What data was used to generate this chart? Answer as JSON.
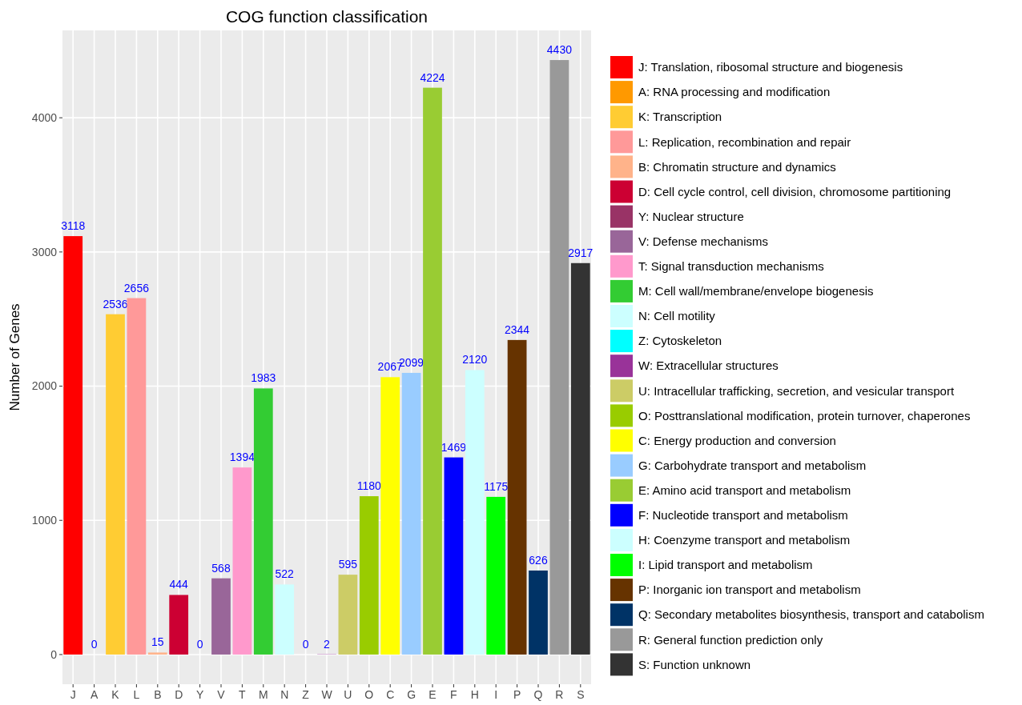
{
  "chart_data": {
    "type": "bar",
    "title": "COG function classification",
    "ylabel": "Number of Genes",
    "categories": [
      "J",
      "A",
      "K",
      "L",
      "B",
      "D",
      "Y",
      "V",
      "T",
      "M",
      "N",
      "Z",
      "W",
      "U",
      "O",
      "C",
      "G",
      "E",
      "F",
      "H",
      "I",
      "P",
      "Q",
      "R",
      "S"
    ],
    "stacked": true,
    "data_labels": true,
    "grid": true,
    "legend": "right",
    "ylim": [
      -221,
      4651
    ],
    "yticks": [
      0,
      1000,
      2000,
      3000,
      4000
    ],
    "series": [
      {
        "name": "J: Translation, ribosomal structure and biogenesis",
        "color": "#ff0000",
        "values": [
          3118,
          null,
          null,
          null,
          null,
          null,
          null,
          null,
          null,
          null,
          null,
          null,
          null,
          null,
          null,
          null,
          null,
          null,
          null,
          null,
          null,
          null,
          null,
          null,
          null
        ]
      },
      {
        "name": "A: RNA processing and modification",
        "color": "#ff9900",
        "values": [
          null,
          0,
          null,
          null,
          null,
          null,
          null,
          null,
          null,
          null,
          null,
          null,
          null,
          null,
          null,
          null,
          null,
          null,
          null,
          null,
          null,
          null,
          null,
          null,
          null
        ]
      },
      {
        "name": "K: Transcription",
        "color": "#ffcc33",
        "values": [
          null,
          null,
          2536,
          null,
          null,
          null,
          null,
          null,
          null,
          null,
          null,
          null,
          null,
          null,
          null,
          null,
          null,
          null,
          null,
          null,
          null,
          null,
          null,
          null,
          null
        ]
      },
      {
        "name": "L: Replication, recombination and repair",
        "color": "#ff9999",
        "values": [
          null,
          null,
          null,
          2656,
          null,
          null,
          null,
          null,
          null,
          null,
          null,
          null,
          null,
          null,
          null,
          null,
          null,
          null,
          null,
          null,
          null,
          null,
          null,
          null,
          null
        ]
      },
      {
        "name": "B: Chromatin structure and dynamics",
        "color": "#ffb38a",
        "values": [
          null,
          null,
          null,
          null,
          15,
          null,
          null,
          null,
          null,
          null,
          null,
          null,
          null,
          null,
          null,
          null,
          null,
          null,
          null,
          null,
          null,
          null,
          null,
          null,
          null
        ]
      },
      {
        "name": "D: Cell cycle control, cell division, chromosome partitioning",
        "color": "#cc0033",
        "values": [
          null,
          null,
          null,
          null,
          null,
          444,
          null,
          null,
          null,
          null,
          null,
          null,
          null,
          null,
          null,
          null,
          null,
          null,
          null,
          null,
          null,
          null,
          null,
          null,
          null
        ]
      },
      {
        "name": "Y: Nuclear structure",
        "color": "#993366",
        "values": [
          null,
          null,
          null,
          null,
          null,
          null,
          0,
          null,
          null,
          null,
          null,
          null,
          null,
          null,
          null,
          null,
          null,
          null,
          null,
          null,
          null,
          null,
          null,
          null,
          null
        ]
      },
      {
        "name": "V: Defense mechanisms",
        "color": "#996699",
        "values": [
          null,
          null,
          null,
          null,
          null,
          null,
          null,
          568,
          null,
          null,
          null,
          null,
          null,
          null,
          null,
          null,
          null,
          null,
          null,
          null,
          null,
          null,
          null,
          null,
          null
        ]
      },
      {
        "name": "T: Signal transduction mechanisms",
        "color": "#ff99cc",
        "values": [
          null,
          null,
          null,
          null,
          null,
          null,
          null,
          null,
          1394,
          null,
          null,
          null,
          null,
          null,
          null,
          null,
          null,
          null,
          null,
          null,
          null,
          null,
          null,
          null,
          null
        ]
      },
      {
        "name": "M: Cell wall/membrane/envelope biogenesis",
        "color": "#33cc33",
        "values": [
          null,
          null,
          null,
          null,
          null,
          null,
          null,
          null,
          null,
          1983,
          null,
          null,
          null,
          null,
          null,
          null,
          null,
          null,
          null,
          null,
          null,
          null,
          null,
          null,
          null
        ]
      },
      {
        "name": "N: Cell motility",
        "color": "#ccffff",
        "values": [
          null,
          null,
          null,
          null,
          null,
          null,
          null,
          null,
          null,
          null,
          522,
          null,
          null,
          null,
          null,
          null,
          null,
          null,
          null,
          null,
          null,
          null,
          null,
          null,
          null
        ]
      },
      {
        "name": "Z: Cytoskeleton",
        "color": "#00ffff",
        "values": [
          null,
          null,
          null,
          null,
          null,
          null,
          null,
          null,
          null,
          null,
          null,
          0,
          null,
          null,
          null,
          null,
          null,
          null,
          null,
          null,
          null,
          null,
          null,
          null,
          null
        ]
      },
      {
        "name": "W: Extracellular structures",
        "color": "#993399",
        "values": [
          null,
          null,
          null,
          null,
          null,
          null,
          null,
          null,
          null,
          null,
          null,
          null,
          2,
          null,
          null,
          null,
          null,
          null,
          null,
          null,
          null,
          null,
          null,
          null,
          null
        ]
      },
      {
        "name": "U: Intracellular trafficking, secretion, and vesicular transport",
        "color": "#cccc66",
        "values": [
          null,
          null,
          null,
          null,
          null,
          null,
          null,
          null,
          null,
          null,
          null,
          null,
          null,
          595,
          null,
          null,
          null,
          null,
          null,
          null,
          null,
          null,
          null,
          null,
          null
        ]
      },
      {
        "name": "O: Posttranslational modification, protein turnover, chaperones",
        "color": "#99cc00",
        "values": [
          null,
          null,
          null,
          null,
          null,
          null,
          null,
          null,
          null,
          null,
          null,
          null,
          null,
          null,
          1180,
          null,
          null,
          null,
          null,
          null,
          null,
          null,
          null,
          null,
          null
        ]
      },
      {
        "name": "C: Energy production and conversion",
        "color": "#ffff00",
        "values": [
          null,
          null,
          null,
          null,
          null,
          null,
          null,
          null,
          null,
          null,
          null,
          null,
          null,
          null,
          null,
          2067,
          null,
          null,
          null,
          null,
          null,
          null,
          null,
          null,
          null
        ]
      },
      {
        "name": "G: Carbohydrate transport and metabolism",
        "color": "#99ccff",
        "values": [
          null,
          null,
          null,
          null,
          null,
          null,
          null,
          null,
          null,
          null,
          null,
          null,
          null,
          null,
          null,
          null,
          2099,
          null,
          null,
          null,
          null,
          null,
          null,
          null,
          null
        ]
      },
      {
        "name": "E: Amino acid transport and metabolism",
        "color": "#99cc33",
        "values": [
          null,
          null,
          null,
          null,
          null,
          null,
          null,
          null,
          null,
          null,
          null,
          null,
          null,
          null,
          null,
          null,
          null,
          4224,
          null,
          null,
          null,
          null,
          null,
          null,
          null
        ]
      },
      {
        "name": "F: Nucleotide transport and metabolism",
        "color": "#0000ff",
        "values": [
          null,
          null,
          null,
          null,
          null,
          null,
          null,
          null,
          null,
          null,
          null,
          null,
          null,
          null,
          null,
          null,
          null,
          null,
          1469,
          null,
          null,
          null,
          null,
          null,
          null
        ]
      },
      {
        "name": "H: Coenzyme transport and metabolism",
        "color": "#ccffff",
        "values": [
          null,
          null,
          null,
          null,
          null,
          null,
          null,
          null,
          null,
          null,
          null,
          null,
          null,
          null,
          null,
          null,
          null,
          null,
          null,
          2120,
          null,
          null,
          null,
          null,
          null
        ]
      },
      {
        "name": "I: Lipid transport and metabolism",
        "color": "#00ff00",
        "values": [
          null,
          null,
          null,
          null,
          null,
          null,
          null,
          null,
          null,
          null,
          null,
          null,
          null,
          null,
          null,
          null,
          null,
          null,
          null,
          null,
          1175,
          null,
          null,
          null,
          null
        ]
      },
      {
        "name": "P: Inorganic ion transport and metabolism",
        "color": "#663300",
        "values": [
          null,
          null,
          null,
          null,
          null,
          null,
          null,
          null,
          null,
          null,
          null,
          null,
          null,
          null,
          null,
          null,
          null,
          null,
          null,
          null,
          null,
          2344,
          null,
          null,
          null
        ]
      },
      {
        "name": "Q: Secondary metabolites biosynthesis, transport and catabolism",
        "color": "#003366",
        "values": [
          null,
          null,
          null,
          null,
          null,
          null,
          null,
          null,
          null,
          null,
          null,
          null,
          null,
          null,
          null,
          null,
          null,
          null,
          null,
          null,
          null,
          null,
          626,
          null,
          null
        ]
      },
      {
        "name": "R: General function prediction only",
        "color": "#999999",
        "values": [
          null,
          null,
          null,
          null,
          null,
          null,
          null,
          null,
          null,
          null,
          null,
          null,
          null,
          null,
          null,
          null,
          null,
          null,
          null,
          null,
          null,
          null,
          null,
          4430,
          null
        ]
      },
      {
        "name": "S: Function unknown",
        "color": "#333333",
        "values": [
          null,
          null,
          null,
          null,
          null,
          null,
          null,
          null,
          null,
          null,
          null,
          null,
          null,
          null,
          null,
          null,
          null,
          null,
          null,
          null,
          null,
          null,
          null,
          null,
          2917
        ]
      }
    ]
  }
}
